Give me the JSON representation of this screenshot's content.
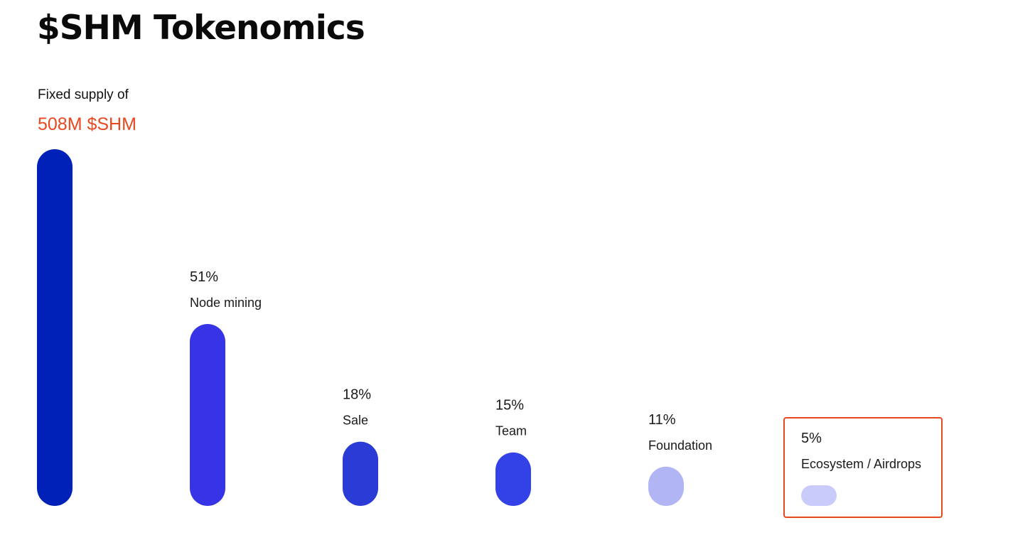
{
  "title": "$SHM Tokenomics",
  "supply": {
    "label": "Fixed supply of",
    "value": "508M $SHM",
    "value_color": "#e8481f"
  },
  "highlight_color": "#e8481f",
  "chart_data": {
    "type": "bar",
    "total_bar_color": "#0021b8",
    "categories": [
      "Node mining",
      "Sale",
      "Team",
      "Foundation",
      "Ecosystem / Airdrops"
    ],
    "values": [
      51,
      18,
      15,
      11,
      5
    ],
    "value_labels": [
      "51%",
      "18%",
      "15%",
      "11%",
      "5%"
    ],
    "colors": [
      "#3734e8",
      "#2b3bd6",
      "#3342e6",
      "#b1b5f4",
      "#c9cbfb"
    ],
    "highlighted_category": "Ecosystem / Airdrops"
  }
}
